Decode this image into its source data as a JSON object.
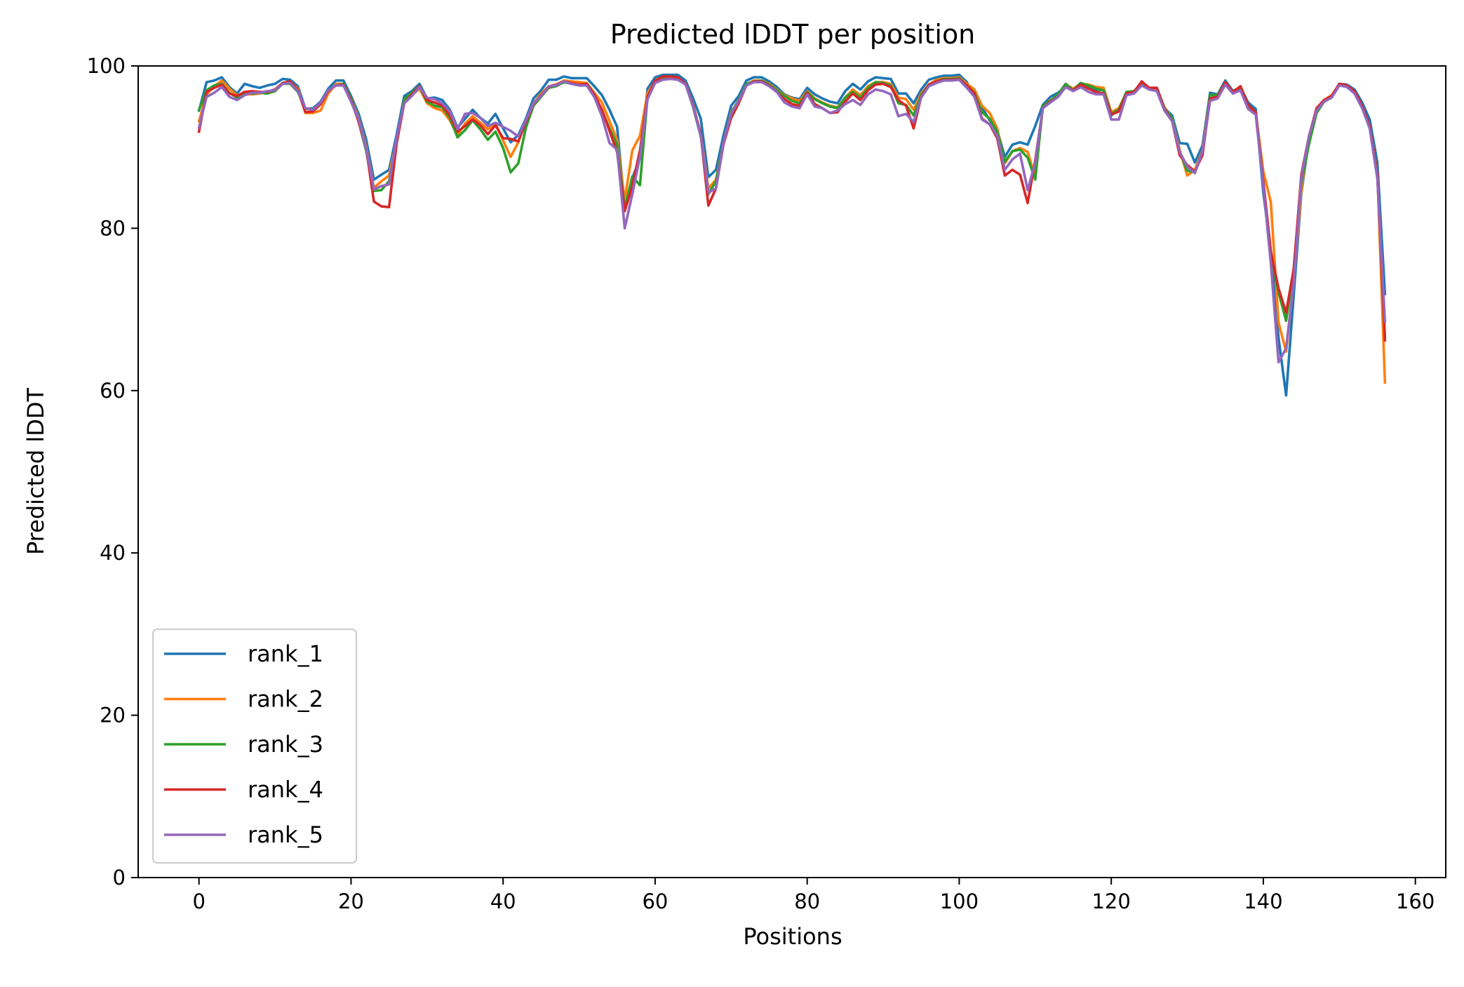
{
  "chart_data": {
    "type": "line",
    "title": "Predicted lDDT per position",
    "xlabel": "Positions",
    "ylabel": "Predicted lDDT",
    "xlim": [
      -8,
      164
    ],
    "ylim": [
      0,
      100
    ],
    "xticks": [
      0,
      20,
      40,
      60,
      80,
      100,
      120,
      140,
      160
    ],
    "yticks": [
      0,
      20,
      40,
      60,
      80,
      100
    ],
    "grid": false,
    "legend_position": "lower-left",
    "series": [
      {
        "name": "rank_1",
        "color": "#1f77b4",
        "values": [
          94.5,
          98,
          98.2,
          98.6,
          97.4,
          96.6,
          97.8,
          97.5,
          97.3,
          97.6,
          97.8,
          98.4,
          98.3,
          97.5,
          94.7,
          94.8,
          95.6,
          97.2,
          98.2,
          98.2,
          96.3,
          94.1,
          90.9,
          86,
          86.6,
          87.2,
          91.6,
          96.3,
          96.9,
          97.8,
          96,
          96.1,
          95.8,
          94.6,
          92.4,
          93.5,
          94.6,
          93.6,
          92.9,
          94.1,
          92.3,
          90.6,
          91.5,
          93.5,
          96,
          97,
          98.3,
          98.3,
          98.7,
          98.5,
          98.5,
          98.5,
          97.5,
          96.4,
          94.6,
          92.5,
          82.5,
          86.2,
          88.6,
          97.2,
          98.6,
          98.9,
          98.9,
          98.9,
          98.2,
          96,
          93.5,
          86.3,
          87.2,
          91.5,
          95.1,
          96.3,
          98.2,
          98.6,
          98.6,
          98.1,
          97.4,
          96.5,
          96.1,
          95.9,
          97.3,
          96.5,
          96,
          95.6,
          95.4,
          96.9,
          97.8,
          97.1,
          98.1,
          98.6,
          98.5,
          98.4,
          96.6,
          96.6,
          95.4,
          97.1,
          98.3,
          98.6,
          98.8,
          98.8,
          98.9,
          98,
          96.2,
          94.9,
          93.3,
          92.1,
          88.8,
          90.3,
          90.6,
          90.3,
          92.6,
          95.2,
          96.2,
          96.7,
          97.4,
          97.1,
          97.9,
          97.4,
          97.1,
          97,
          93.9,
          94.7,
          96.7,
          96.8,
          97.7,
          97.1,
          97.1,
          94.8,
          93.9,
          90.5,
          90.4,
          88.1,
          90.2,
          96.7,
          96.5,
          98.2,
          96.9,
          97.4,
          95.5,
          94.7,
          84.4,
          77.1,
          66.5,
          59.4,
          71.8,
          84.3,
          90.9,
          94.2,
          95.8,
          96.3,
          97.8,
          97.7,
          97.1,
          95.5,
          93.4,
          88.1,
          71.9
        ]
      },
      {
        "name": "rank_2",
        "color": "#ff7f0e",
        "values": [
          93.2,
          96.5,
          97.5,
          98.2,
          97.2,
          96.4,
          96.5,
          96.5,
          96.6,
          96.8,
          97,
          97.8,
          98,
          97.2,
          94.2,
          94.2,
          94.5,
          96.6,
          97.8,
          97.8,
          96,
          93.5,
          90,
          85,
          85.8,
          86.5,
          90.9,
          95.6,
          96.4,
          97.2,
          95.4,
          94.8,
          94.5,
          93.3,
          91.5,
          92.9,
          93.8,
          93,
          92.2,
          92.9,
          90.8,
          88.8,
          90.6,
          93.2,
          95.4,
          96.6,
          97.5,
          97.7,
          98.2,
          98.1,
          98,
          97.9,
          96.7,
          95.5,
          93.2,
          90.9,
          83.4,
          89.6,
          91.4,
          96.7,
          98.1,
          98.6,
          98.6,
          98.6,
          97.8,
          95.2,
          91.6,
          84.9,
          86,
          90.6,
          94.3,
          95.8,
          97.7,
          98.2,
          98.2,
          97.8,
          97.1,
          96.4,
          96,
          95.7,
          96.9,
          96,
          95.5,
          95.1,
          94.9,
          96.1,
          97.1,
          96.4,
          97.5,
          98,
          98,
          97.8,
          96.1,
          95.9,
          94.6,
          96.6,
          97.7,
          98.3,
          98.5,
          98.5,
          98.6,
          97.8,
          97.1,
          95.1,
          94.2,
          92.3,
          88,
          89.5,
          89.9,
          89.4,
          86.3,
          94.9,
          95.8,
          96.2,
          97.7,
          97.2,
          97.8,
          97.7,
          97.4,
          97.3,
          94.3,
          94.8,
          96.7,
          96.9,
          97.9,
          97.3,
          97.2,
          94.9,
          93.5,
          89.7,
          86.5,
          87.2,
          89.6,
          96.4,
          96.4,
          97.9,
          96.8,
          97.3,
          95,
          94.3,
          87,
          83.2,
          68.4,
          64.8,
          73.6,
          84.6,
          91.3,
          94.6,
          95.8,
          96.4,
          97.7,
          97.6,
          96.8,
          94.9,
          92.4,
          86.8,
          61
        ]
      },
      {
        "name": "rank_3",
        "color": "#2ca02c",
        "values": [
          94.6,
          97,
          97.6,
          97.8,
          96.7,
          96.1,
          96.7,
          96.6,
          96.7,
          96.6,
          96.9,
          97.8,
          97.8,
          96.8,
          94.7,
          94.7,
          95.4,
          97,
          97.6,
          97.8,
          96,
          93.1,
          89.5,
          84.6,
          84.7,
          85.8,
          90.6,
          95.9,
          96.7,
          97.5,
          95.6,
          95.1,
          94.9,
          93.6,
          91.2,
          92.1,
          93.3,
          92.2,
          90.9,
          91.9,
          89.9,
          86.9,
          88,
          92.4,
          95.1,
          96.2,
          97.3,
          97.5,
          98,
          97.8,
          97.6,
          97.6,
          96.2,
          94.5,
          92.3,
          90.3,
          82.4,
          86.4,
          85.3,
          96.2,
          98,
          98.6,
          98.7,
          98.6,
          97.8,
          94.9,
          91.3,
          84.2,
          85.8,
          90.6,
          94.2,
          95.8,
          97.8,
          98.1,
          98.2,
          97.7,
          97,
          96.3,
          95.7,
          95.4,
          96.8,
          95.9,
          95.4,
          95,
          94.8,
          96.1,
          96.8,
          96.1,
          97.3,
          98,
          97.9,
          97.6,
          95.4,
          95.2,
          93.9,
          96.4,
          97.7,
          98.1,
          98.4,
          98.4,
          98.5,
          97.6,
          96.7,
          94.3,
          93.5,
          91.9,
          88.2,
          89.5,
          89.7,
          88.7,
          86,
          95.1,
          95.7,
          96.5,
          97.8,
          97,
          97.9,
          97.6,
          97.2,
          97,
          94.1,
          94.6,
          96.8,
          96.9,
          97.8,
          97.3,
          97.3,
          94.8,
          93.5,
          89.4,
          87.1,
          86.9,
          89.2,
          96.4,
          96.4,
          98,
          96.7,
          97.3,
          95,
          94.2,
          85.8,
          76.5,
          72.1,
          68.6,
          75,
          85.6,
          90.3,
          94.2,
          95.6,
          96.1,
          97.7,
          97.5,
          96.8,
          95.1,
          92.6,
          86.7,
          66.5
        ]
      },
      {
        "name": "rank_4",
        "color": "#d62728",
        "values": [
          91.9,
          96.8,
          97.3,
          97.7,
          96.6,
          96.3,
          96.8,
          96.9,
          96.8,
          96.8,
          97.1,
          97.9,
          98.1,
          97,
          94.3,
          94.4,
          95.3,
          96.9,
          97.6,
          97.7,
          95.8,
          93.1,
          89.8,
          83.3,
          82.7,
          82.6,
          90.5,
          95.4,
          96.5,
          97.5,
          95.8,
          95.5,
          95.1,
          93.9,
          91.9,
          92.6,
          93.4,
          92.7,
          91.6,
          92.7,
          91.1,
          91,
          90.7,
          93.1,
          95.3,
          96.4,
          97.4,
          97.7,
          98.1,
          97.9,
          97.7,
          97.8,
          96.5,
          94.6,
          92,
          89.4,
          82.1,
          85.2,
          89.6,
          96.2,
          98.2,
          98.7,
          98.7,
          98.6,
          97.8,
          95.1,
          91.6,
          82.8,
          84.9,
          90.4,
          93.6,
          95.4,
          97.6,
          98.1,
          98.1,
          97.6,
          96.8,
          95.9,
          95.3,
          95.1,
          96.7,
          95.3,
          94.8,
          94.2,
          94.3,
          95.6,
          96.6,
          95.8,
          97,
          97.7,
          97.8,
          97.4,
          95.8,
          95.1,
          92.3,
          96.2,
          97.7,
          98.1,
          98.3,
          98.3,
          98.4,
          97.6,
          96.6,
          93.5,
          92.8,
          91.1,
          86.5,
          87.2,
          86.6,
          83.1,
          88.4,
          94.8,
          95.6,
          96.2,
          97.4,
          97,
          97.7,
          97.2,
          96.8,
          96.6,
          94,
          94.4,
          96.6,
          96.8,
          98.1,
          97.3,
          97.3,
          94.7,
          93.2,
          89,
          87.8,
          87,
          89,
          96,
          96.2,
          98,
          96.8,
          97.5,
          95.2,
          94.3,
          85.8,
          77.1,
          72.6,
          69.6,
          75,
          86.6,
          91.3,
          94.8,
          95.8,
          96.3,
          97.8,
          97.6,
          96.9,
          95.1,
          92.6,
          86.6,
          66.2
        ]
      },
      {
        "name": "rank_5",
        "color": "#9467bd",
        "values": [
          92.4,
          96.2,
          96.7,
          97.4,
          96.2,
          95.8,
          96.4,
          96.7,
          96.7,
          96.9,
          97,
          97.8,
          97.9,
          96.9,
          94.8,
          94.6,
          95.5,
          97,
          97.6,
          97.6,
          95.6,
          93.4,
          89.8,
          84.8,
          85.2,
          85.4,
          91.2,
          95.4,
          96.3,
          97.4,
          96.1,
          95.9,
          95.4,
          94.4,
          92.2,
          94.1,
          94.2,
          93.6,
          92.6,
          93,
          92.5,
          92,
          91.3,
          93.3,
          95.4,
          96.3,
          97.5,
          97.6,
          98.1,
          97.8,
          97.6,
          97.6,
          96.2,
          93.8,
          90.5,
          89.7,
          80,
          84.2,
          88.8,
          95.9,
          97.9,
          98.3,
          98.4,
          98.3,
          97.7,
          95,
          91.4,
          84.4,
          84.9,
          90.6,
          94.1,
          95.7,
          97.6,
          98,
          98,
          97.5,
          96.8,
          95.5,
          95,
          94.8,
          96.5,
          95,
          94.8,
          94.2,
          94.5,
          95.3,
          95.8,
          95.2,
          96.5,
          97.1,
          96.9,
          96.5,
          93.8,
          94.1,
          93.1,
          96.1,
          97.5,
          97.9,
          98.2,
          98.2,
          98.3,
          97.3,
          96.2,
          93.4,
          92.8,
          91.4,
          87.2,
          88.5,
          89.2,
          84.7,
          88.1,
          94.8,
          95.5,
          96.2,
          97.4,
          96.9,
          97.4,
          96.8,
          96.5,
          96.5,
          93.4,
          93.4,
          96.4,
          96.6,
          97.6,
          97.1,
          96.9,
          94.5,
          93.2,
          89.4,
          87.6,
          86.8,
          89.5,
          95.7,
          96,
          97.7,
          96.6,
          97,
          94.7,
          94,
          85.3,
          75.6,
          63.5,
          65.2,
          73.3,
          86.2,
          91.3,
          94.5,
          95.6,
          96.1,
          97.6,
          97.4,
          96.6,
          94.8,
          92.3,
          86.1,
          68.5
        ]
      }
    ]
  }
}
